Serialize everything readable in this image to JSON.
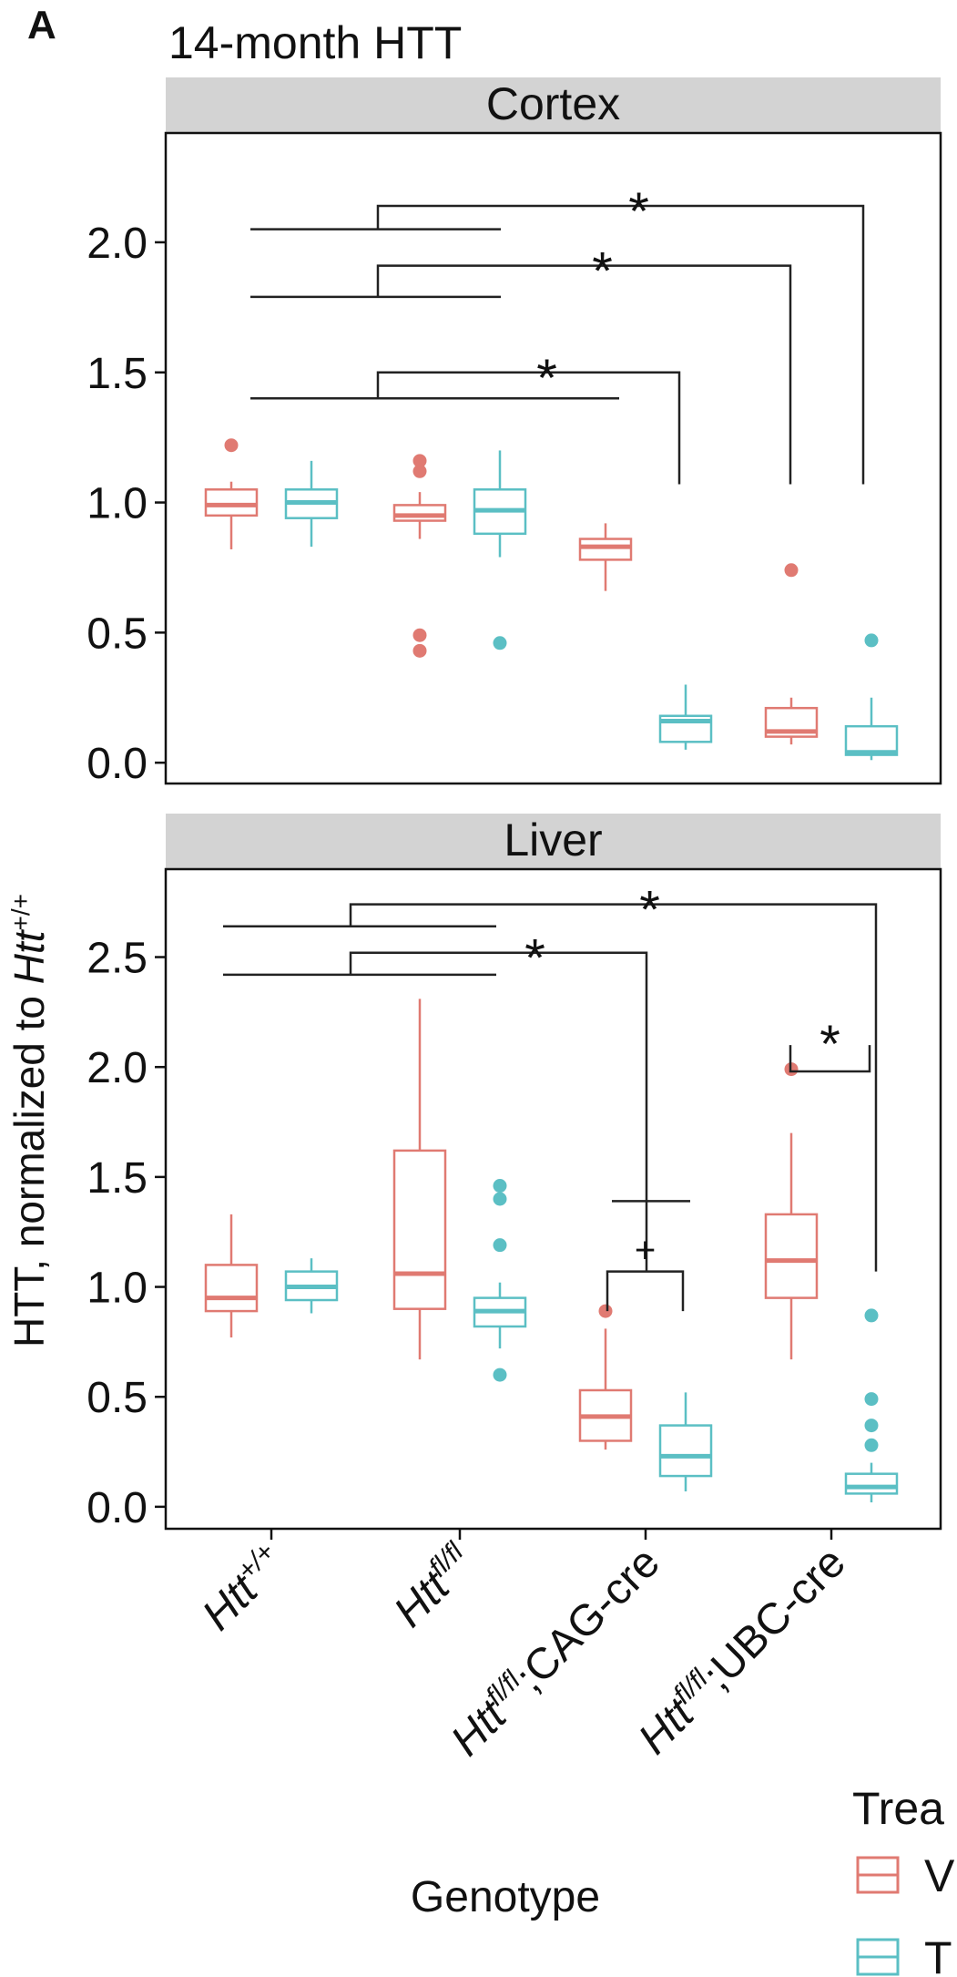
{
  "panel_letter": "A",
  "title": "14-month HTT",
  "ylabel_prefix": "HTT, normalized to ",
  "ylabel_italic": "Htt",
  "ylabel_sup": "+/+",
  "xlabel": "Genotype",
  "legend": {
    "title": "Trea",
    "entries": [
      {
        "label": "V",
        "color": "#E07A72"
      },
      {
        "label": "T",
        "color": "#5BBFC4"
      }
    ]
  },
  "chart_data": {
    "type": "boxplot",
    "categories": [
      {
        "italic": "Htt",
        "sup": "+/+",
        "rest": ""
      },
      {
        "italic": "Htt",
        "sup": "fl/fl",
        "rest": ""
      },
      {
        "italic": "Htt",
        "sup": "fl/fl",
        "rest": ";CAG-cre"
      },
      {
        "italic": "Htt",
        "sup": "fl/fl",
        "rest": ";UBC-cre"
      }
    ],
    "series_colors": [
      "#E07A72",
      "#5BBFC4"
    ],
    "panels": [
      {
        "strip": "Cortex",
        "ylim": [
          -0.08,
          2.42
        ],
        "yticks": [
          0.0,
          0.5,
          1.0,
          1.5,
          2.0
        ],
        "ytick_labels": [
          "0.0",
          "0.5",
          "1.0",
          "1.5",
          "2.0"
        ],
        "boxes": [
          {
            "cat": 0,
            "series": 0,
            "min": 0.82,
            "q1": 0.95,
            "median": 0.99,
            "q3": 1.05,
            "max": 1.08,
            "outliers": [
              1.22
            ]
          },
          {
            "cat": 0,
            "series": 1,
            "min": 0.83,
            "q1": 0.94,
            "median": 1.0,
            "q3": 1.05,
            "max": 1.16,
            "outliers": []
          },
          {
            "cat": 1,
            "series": 0,
            "min": 0.86,
            "q1": 0.93,
            "median": 0.95,
            "q3": 0.99,
            "max": 1.04,
            "outliers": [
              1.16,
              1.12,
              0.49,
              0.43
            ]
          },
          {
            "cat": 1,
            "series": 1,
            "min": 0.79,
            "q1": 0.88,
            "median": 0.97,
            "q3": 1.05,
            "max": 1.2,
            "outliers": [
              0.46
            ]
          },
          {
            "cat": 2,
            "series": 0,
            "min": 0.66,
            "q1": 0.78,
            "median": 0.83,
            "q3": 0.86,
            "max": 0.92,
            "outliers": []
          },
          {
            "cat": 2,
            "series": 1,
            "min": 0.05,
            "q1": 0.08,
            "median": 0.16,
            "q3": 0.18,
            "max": 0.3,
            "outliers": []
          },
          {
            "cat": 3,
            "series": 0,
            "min": 0.07,
            "q1": 0.1,
            "median": 0.12,
            "q3": 0.21,
            "max": 0.25,
            "outliers": [
              0.74
            ]
          },
          {
            "cat": 3,
            "series": 1,
            "min": 0.01,
            "q1": 0.03,
            "median": 0.04,
            "q3": 0.14,
            "max": 0.25,
            "outliers": [
              0.47
            ]
          }
        ],
        "annotations": [
          {
            "label": "*",
            "y_left": 2.05,
            "y_top": 2.14,
            "y_right": 1.07
          },
          {
            "label": "*",
            "y_left": 1.79,
            "y_top": 1.91,
            "y_right": 1.07
          },
          {
            "label": "*",
            "y_left": 1.4,
            "y_top": 1.5,
            "y_right": 1.07
          }
        ]
      },
      {
        "strip": "Liver",
        "ylim": [
          -0.1,
          2.9
        ],
        "yticks": [
          0.0,
          0.5,
          1.0,
          1.5,
          2.0,
          2.5
        ],
        "ytick_labels": [
          "0.0",
          "0.5",
          "1.0",
          "1.5",
          "2.0",
          "2.5"
        ],
        "boxes": [
          {
            "cat": 0,
            "series": 0,
            "min": 0.77,
            "q1": 0.89,
            "median": 0.95,
            "q3": 1.1,
            "max": 1.33,
            "outliers": []
          },
          {
            "cat": 0,
            "series": 1,
            "min": 0.88,
            "q1": 0.94,
            "median": 1.0,
            "q3": 1.07,
            "max": 1.13,
            "outliers": []
          },
          {
            "cat": 1,
            "series": 0,
            "min": 0.67,
            "q1": 0.9,
            "median": 1.06,
            "q3": 1.62,
            "max": 2.31,
            "outliers": []
          },
          {
            "cat": 1,
            "series": 1,
            "min": 0.72,
            "q1": 0.82,
            "median": 0.89,
            "q3": 0.95,
            "max": 1.02,
            "outliers": [
              1.46,
              1.4,
              1.19,
              0.6
            ]
          },
          {
            "cat": 2,
            "series": 0,
            "min": 0.26,
            "q1": 0.3,
            "median": 0.41,
            "q3": 0.53,
            "max": 0.81,
            "outliers": [
              0.89
            ]
          },
          {
            "cat": 2,
            "series": 1,
            "min": 0.07,
            "q1": 0.14,
            "median": 0.23,
            "q3": 0.37,
            "max": 0.52,
            "outliers": []
          },
          {
            "cat": 3,
            "series": 0,
            "min": 0.67,
            "q1": 0.95,
            "median": 1.12,
            "q3": 1.33,
            "max": 1.7,
            "outliers": [
              1.99
            ]
          },
          {
            "cat": 3,
            "series": 1,
            "min": 0.02,
            "q1": 0.06,
            "median": 0.09,
            "q3": 0.15,
            "max": 0.2,
            "outliers": [
              0.87,
              0.49,
              0.37,
              0.28
            ]
          }
        ],
        "annotations": [
          {
            "label": "*",
            "y_left": 2.64,
            "y_top": 2.74,
            "y_right": 1.07
          },
          {
            "label": "*",
            "y_left": 2.42,
            "y_top": 2.52,
            "y_right": 1.07
          },
          {
            "label": "*",
            "y_top": 1.98,
            "y_bottom": 2.1
          },
          {
            "label": "+",
            "y_top": 1.07,
            "y_bottom": 0.89
          },
          {
            "y_line": 1.39
          }
        ]
      }
    ]
  }
}
